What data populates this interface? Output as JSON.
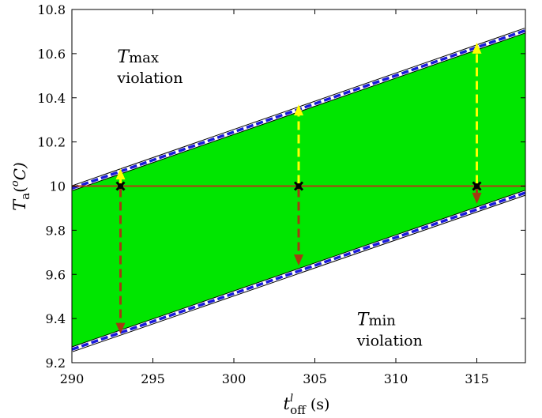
{
  "chart_data": {
    "type": "area",
    "xlabel": {
      "main": "t",
      "sup": "l",
      "sub": "off",
      "unit": " (s)"
    },
    "ylabel": {
      "main": "T",
      "sub": "a",
      "unit_open": "(",
      "unit_sup": "o",
      "unit_close": "C)"
    },
    "xlim": [
      290,
      318
    ],
    "ylim": [
      9.2,
      10.8
    ],
    "xticks": [
      290,
      295,
      300,
      305,
      310,
      315
    ],
    "yticks": [
      9.2,
      9.4,
      9.6,
      9.8,
      10,
      10.2,
      10.4,
      10.6,
      10.8
    ],
    "ytick_labels": [
      "9.2",
      "9.4",
      "9.6",
      "9.8",
      "10",
      "10.2",
      "10.4",
      "10.6",
      "10.8"
    ],
    "upper_bound": {
      "x": [
        290,
        318
      ],
      "y": [
        9.99,
        10.705
      ]
    },
    "lower_bound": {
      "x": [
        290,
        318
      ],
      "y": [
        9.26,
        9.97
      ]
    },
    "setpoint": 10,
    "events": [
      {
        "x": 293,
        "up_to": 10.08,
        "down_to": 9.33
      },
      {
        "x": 304,
        "up_to": 10.37,
        "down_to": 9.64
      },
      {
        "x": 315,
        "up_to": 10.65,
        "down_to": 9.92
      }
    ],
    "annotations": {
      "tmax": {
        "main": "T",
        "sub": "max",
        "line2": "violation",
        "x": 292.8,
        "y": 10.56
      },
      "tmin": {
        "main": "T",
        "sub": "min",
        "line2": "violation",
        "x": 307.6,
        "y": 9.37
      }
    },
    "colors": {
      "band": "#00e600",
      "bound_dash": "#1a1adb",
      "setpoint": "#b23a14",
      "up_arrow": "#ffff00",
      "down_arrow": "#a33a12",
      "marker": "#000000"
    }
  }
}
